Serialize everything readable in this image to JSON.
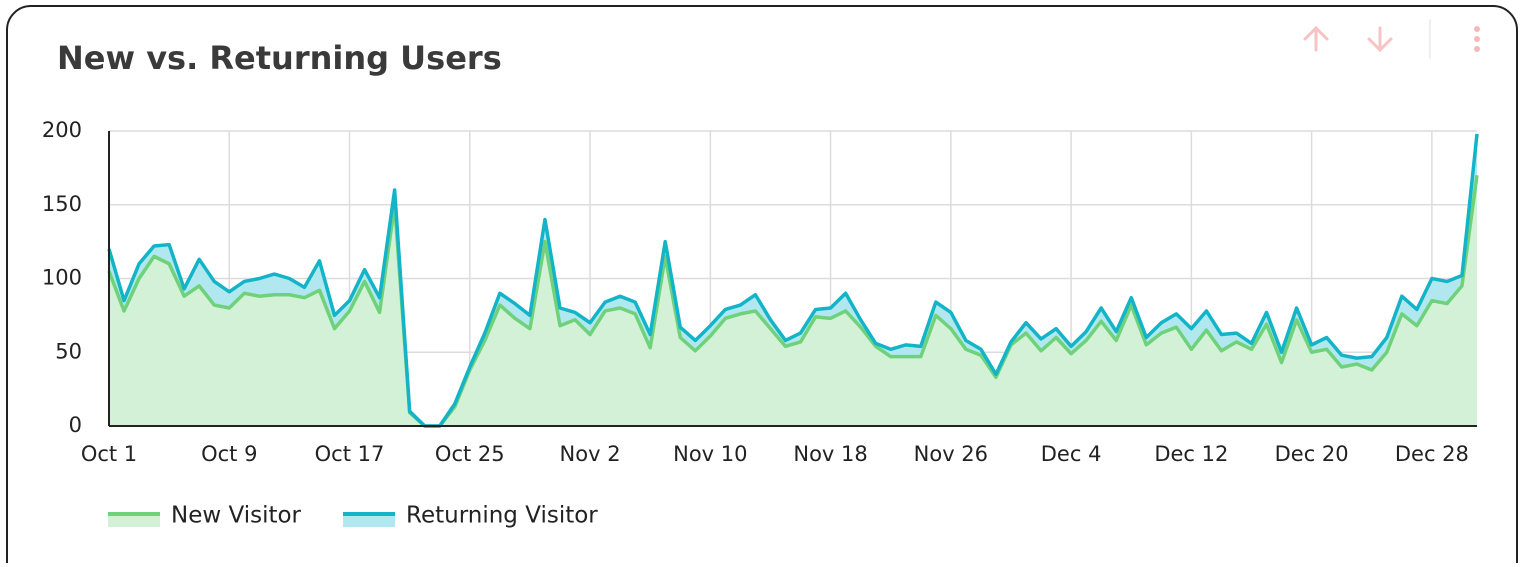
{
  "chart_data": {
    "type": "stacked_area",
    "title": "New vs. Returning Users",
    "categories": [
      "Oct 1",
      null,
      null,
      null,
      null,
      null,
      null,
      null,
      "Oct 9",
      null,
      null,
      null,
      null,
      null,
      null,
      null,
      "Oct 17",
      null,
      null,
      null,
      null,
      null,
      null,
      null,
      "Oct 25",
      null,
      null,
      null,
      null,
      null,
      null,
      null,
      "Nov 2",
      null,
      null,
      null,
      null,
      null,
      null,
      null,
      "Nov 10",
      null,
      null,
      null,
      null,
      null,
      null,
      null,
      "Nov 18",
      null,
      null,
      null,
      null,
      null,
      null,
      null,
      "Nov 26",
      null,
      null,
      null,
      null,
      null,
      null,
      null,
      "Dec 4",
      null,
      null,
      null,
      null,
      null,
      null,
      null,
      "Dec 12",
      null,
      null,
      null,
      null,
      null,
      null,
      null,
      "Dec 20",
      null,
      null,
      null,
      null,
      null,
      null,
      null,
      "Dec 28",
      null,
      null,
      null
    ],
    "series": [
      {
        "name": "New Visitor",
        "color": "#6fd27a",
        "fill": "#d3f1d6",
        "values": [
          105,
          78,
          100,
          115,
          110,
          88,
          95,
          82,
          80,
          90,
          88,
          89,
          89,
          87,
          92,
          66,
          78,
          98,
          77,
          150,
          9,
          0,
          0,
          13,
          38,
          58,
          82,
          73,
          66,
          125,
          68,
          72,
          62,
          78,
          80,
          76,
          53,
          115,
          60,
          51,
          61,
          73,
          76,
          78,
          66,
          54,
          57,
          74,
          73,
          78,
          67,
          54,
          47,
          47,
          47,
          75,
          66,
          52,
          48,
          33,
          55,
          63,
          51,
          60,
          49,
          58,
          71,
          58,
          82,
          55,
          63,
          67,
          52,
          65,
          51,
          57,
          52,
          69,
          43,
          72,
          50,
          52,
          40,
          42,
          38,
          50,
          76,
          68,
          85,
          83,
          95,
          170
        ]
      },
      {
        "name": "Returning Visitor",
        "color": "#13b3c8",
        "fill": "#b1e8ef",
        "values": [
          15,
          7,
          10,
          7,
          13,
          5,
          18,
          16,
          11,
          8,
          12,
          14,
          11,
          7,
          20,
          9,
          7,
          8,
          10,
          10,
          1,
          0,
          0,
          2,
          2,
          5,
          8,
          10,
          9,
          15,
          12,
          5,
          8,
          6,
          8,
          8,
          9,
          10,
          7,
          7,
          7,
          6,
          6,
          11,
          6,
          4,
          6,
          5,
          7,
          12,
          5,
          2,
          5,
          8,
          7,
          9,
          11,
          6,
          4,
          2,
          2,
          7,
          8,
          6,
          5,
          6,
          9,
          6,
          5,
          5,
          7,
          9,
          14,
          13,
          11,
          6,
          4,
          8,
          7,
          8,
          5,
          8,
          8,
          4,
          9,
          10,
          12,
          11,
          15,
          15,
          7,
          28
        ]
      }
    ],
    "ylim": [
      0,
      200
    ],
    "yticks": [
      0,
      50,
      100,
      150,
      200
    ],
    "grid": true,
    "legend": "bottom-left"
  }
}
